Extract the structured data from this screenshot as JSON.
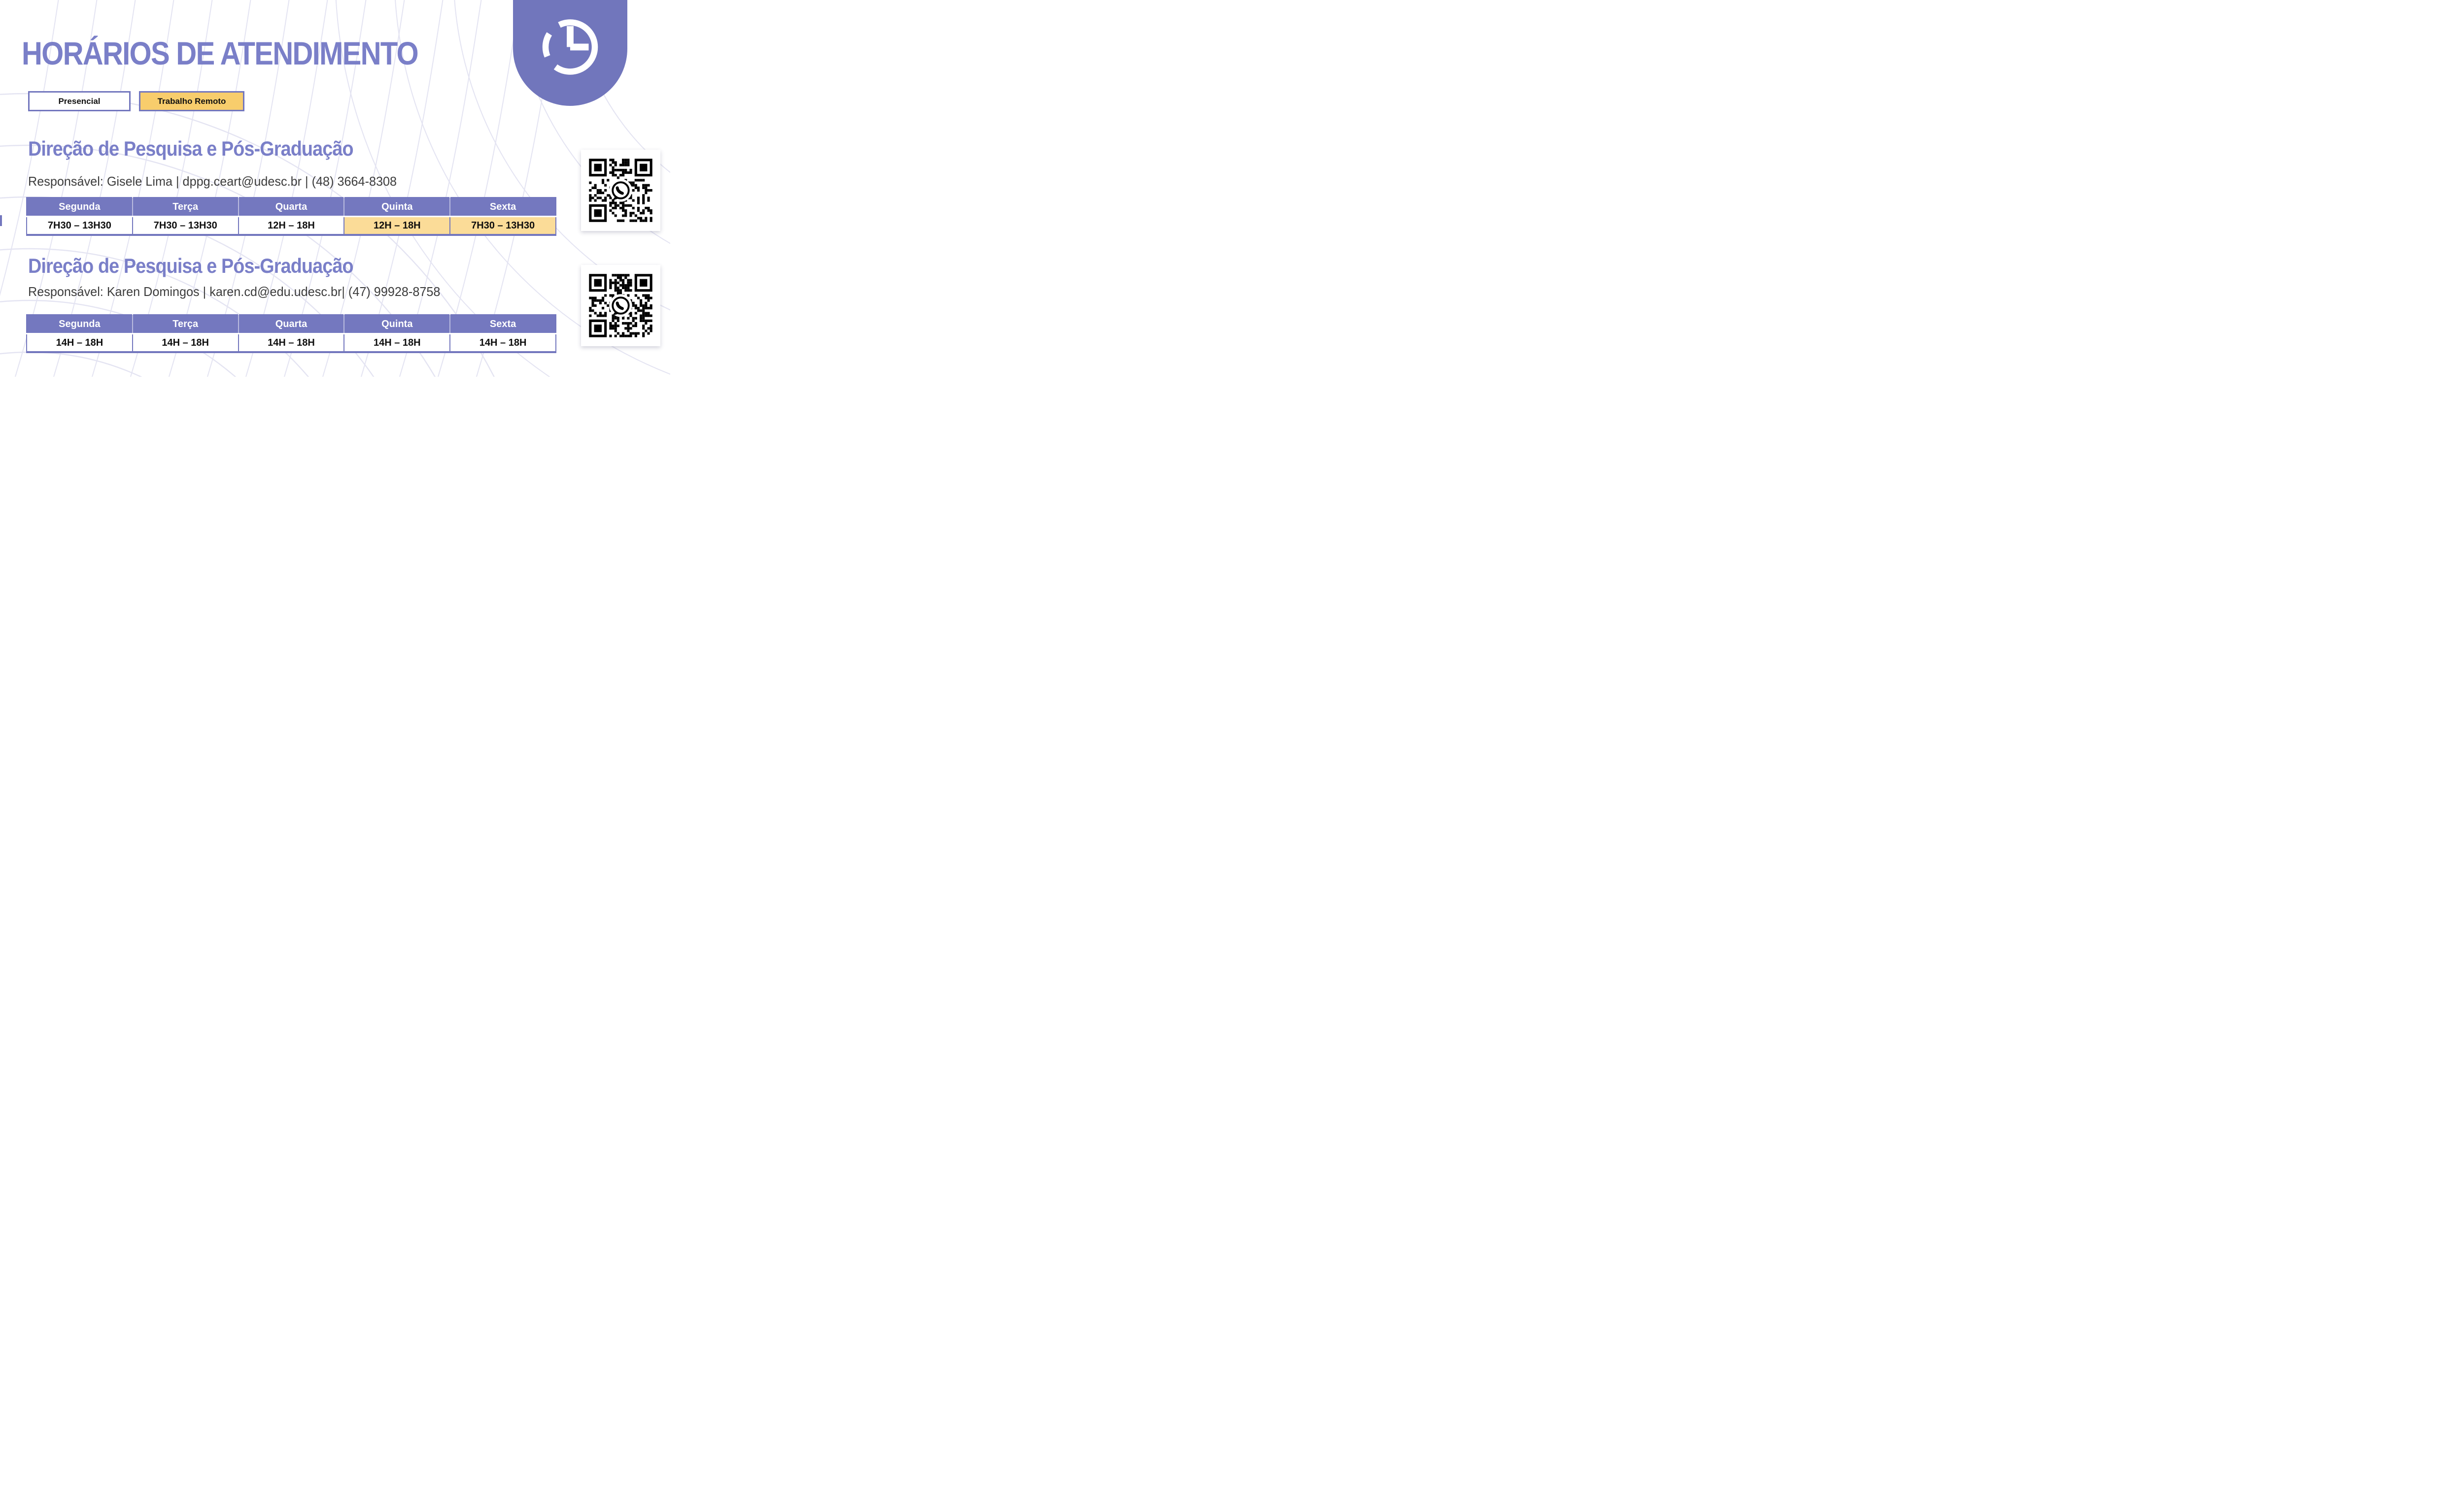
{
  "slide": {
    "title": "HORÁRIOS DE ATENDIMENTO",
    "legend": {
      "presencial_label": "Presencial",
      "remoto_label": "Trabalho Remoto"
    },
    "sections": [
      {
        "heading": "Direção de Pesquisa e Pós-Graduação",
        "responsible": "Responsável: Gisele Lima | dppg.ceart@udesc.br | (48) 3664-8308",
        "days": [
          "Segunda",
          "Terça",
          "Quarta",
          "Quinta",
          "Sexta"
        ],
        "hours": [
          {
            "text": "7H30 – 13H30",
            "mode": "presencial"
          },
          {
            "text": "7H30 – 13H30",
            "mode": "presencial"
          },
          {
            "text": "12H – 18H",
            "mode": "presencial"
          },
          {
            "text": "12H – 18H",
            "mode": "remoto"
          },
          {
            "text": "7H30 – 13H30",
            "mode": "remoto"
          }
        ]
      },
      {
        "heading": "Direção de Pesquisa e Pós-Graduação",
        "responsible": "Responsável: Karen Domingos | karen.cd@edu.udesc.br| (47) 99928-8758",
        "days": [
          "Segunda",
          "Terça",
          "Quarta",
          "Quinta",
          "Sexta"
        ],
        "hours": [
          {
            "text": "14H – 18H",
            "mode": "presencial"
          },
          {
            "text": "14H – 18H",
            "mode": "presencial"
          },
          {
            "text": "14H – 18H",
            "mode": "presencial"
          },
          {
            "text": "14H – 18H",
            "mode": "presencial"
          },
          {
            "text": "14H – 18H",
            "mode": "presencial"
          }
        ]
      }
    ],
    "qr_codes": [
      {
        "icon": "whatsapp-icon"
      },
      {
        "icon": "whatsapp-icon"
      }
    ],
    "icons": {
      "header_badge": "clock-icon"
    },
    "colors": {
      "purple": "#7377BE",
      "purple_header": "#7478BF",
      "purple_text": "#7A7FC8",
      "yellow_legend": "#F8CD6C",
      "yellow_cell": "#FBDC98",
      "text_dark": "#3C3C3C",
      "pattern_line": "#E4E4F2"
    }
  }
}
